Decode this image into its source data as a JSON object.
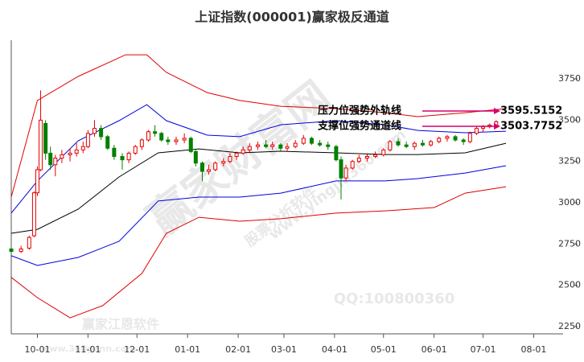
{
  "chart_data": {
    "type": "candlestick",
    "title": "上证指数(000001)赢家极反通道",
    "xlim": [
      -16,
      322
    ],
    "xticks": [
      {
        "value": 0,
        "label": "10-01"
      },
      {
        "value": 31,
        "label": "11-01"
      },
      {
        "value": 61,
        "label": "12-01"
      },
      {
        "value": 92,
        "label": "01-01"
      },
      {
        "value": 123,
        "label": "02-01"
      },
      {
        "value": 151,
        "label": "03-01"
      },
      {
        "value": 182,
        "label": "04-01"
      },
      {
        "value": 212,
        "label": "05-01"
      },
      {
        "value": 243,
        "label": "06-01"
      },
      {
        "value": 273,
        "label": "07-01"
      },
      {
        "value": 304,
        "label": "08-01"
      }
    ],
    "ylim": [
      2206,
      3984
    ],
    "yticks": [
      2250,
      2500,
      2750,
      3000,
      3250,
      3500,
      3750
    ],
    "up_color": "#e60000",
    "down_color": "#008000",
    "candles": {
      "x": [
        -16,
        -10,
        -5,
        -2,
        0,
        2,
        5,
        8,
        11,
        15,
        20,
        24,
        28,
        31,
        35,
        39,
        43,
        47,
        52,
        56,
        60,
        64,
        68,
        72,
        76,
        80,
        85,
        90,
        94,
        97,
        101,
        105,
        109,
        114,
        118,
        122,
        126,
        130,
        135,
        140,
        144,
        149,
        153,
        158,
        163,
        168,
        173,
        178,
        183,
        186,
        189,
        193,
        197,
        202,
        207,
        212,
        216,
        221,
        226,
        231,
        236,
        241,
        246,
        251,
        256,
        261,
        265,
        269,
        273,
        277,
        281
      ],
      "open": [
        2720,
        2705,
        2725,
        2800,
        3060,
        3200,
        3480,
        3300,
        3230,
        3270,
        3290,
        3300,
        3320,
        3340,
        3420,
        3450,
        3400,
        3330,
        3280,
        3260,
        3300,
        3340,
        3380,
        3430,
        3420,
        3380,
        3370,
        3380,
        3390,
        3310,
        3240,
        3190,
        3200,
        3240,
        3250,
        3280,
        3300,
        3320,
        3340,
        3350,
        3340,
        3350,
        3330,
        3340,
        3360,
        3390,
        3360,
        3350,
        3340,
        3260,
        3150,
        3210,
        3250,
        3270,
        3280,
        3290,
        3320,
        3370,
        3350,
        3340,
        3360,
        3350,
        3370,
        3390,
        3400,
        3380,
        3370,
        3420,
        3450,
        3460,
        3470
      ],
      "high": [
        2735,
        2740,
        2800,
        3070,
        3220,
        3680,
        3500,
        3340,
        3290,
        3320,
        3330,
        3360,
        3370,
        3440,
        3500,
        3470,
        3410,
        3350,
        3300,
        3310,
        3350,
        3390,
        3440,
        3470,
        3430,
        3400,
        3400,
        3420,
        3400,
        3320,
        3250,
        3230,
        3250,
        3270,
        3300,
        3310,
        3340,
        3360,
        3370,
        3380,
        3370,
        3360,
        3360,
        3380,
        3410,
        3400,
        3380,
        3370,
        3350,
        3280,
        3230,
        3260,
        3290,
        3300,
        3310,
        3330,
        3380,
        3390,
        3370,
        3370,
        3380,
        3380,
        3400,
        3410,
        3410,
        3390,
        3430,
        3460,
        3470,
        3480,
        3500
      ],
      "low": [
        2690,
        2695,
        2715,
        2790,
        3040,
        3190,
        3260,
        3200,
        3160,
        3240,
        3250,
        3280,
        3300,
        3330,
        3400,
        3380,
        3320,
        3260,
        3200,
        3240,
        3290,
        3320,
        3370,
        3400,
        3370,
        3350,
        3350,
        3360,
        3300,
        3220,
        3130,
        3170,
        3190,
        3220,
        3240,
        3260,
        3290,
        3300,
        3320,
        3330,
        3320,
        3310,
        3310,
        3330,
        3350,
        3350,
        3340,
        3320,
        3250,
        3020,
        3130,
        3200,
        3240,
        3250,
        3270,
        3280,
        3310,
        3340,
        3330,
        3320,
        3340,
        3340,
        3360,
        3370,
        3370,
        3350,
        3360,
        3410,
        3430,
        3450,
        3460
      ],
      "close": [
        2705,
        2720,
        2790,
        3060,
        3200,
        3500,
        3300,
        3230,
        3270,
        3290,
        3300,
        3320,
        3340,
        3420,
        3450,
        3400,
        3330,
        3280,
        3260,
        3300,
        3340,
        3380,
        3430,
        3420,
        3380,
        3370,
        3380,
        3390,
        3310,
        3240,
        3190,
        3200,
        3240,
        3250,
        3280,
        3300,
        3320,
        3340,
        3350,
        3340,
        3350,
        3330,
        3340,
        3360,
        3390,
        3360,
        3350,
        3340,
        3260,
        3150,
        3210,
        3250,
        3270,
        3280,
        3290,
        3320,
        3370,
        3350,
        3340,
        3360,
        3350,
        3370,
        3390,
        3400,
        3380,
        3370,
        3420,
        3450,
        3460,
        3470,
        3490
      ]
    },
    "series": [
      {
        "color": "#e00000",
        "x": [
          -16,
          0,
          25,
          54,
          67,
          79,
          104,
          124,
          149,
          183,
          213,
          233,
          262,
          287
        ],
        "values": [
          3034,
          3619,
          3765,
          3896,
          3896,
          3789,
          3667,
          3619,
          3584,
          3570,
          3545,
          3521,
          3545,
          3570
        ]
      },
      {
        "color": "#0000e0",
        "x": [
          -16,
          0,
          25,
          50,
          67,
          79,
          104,
          124,
          149,
          183,
          213,
          233,
          262,
          287
        ],
        "values": [
          2937,
          3132,
          3375,
          3497,
          3594,
          3497,
          3409,
          3400,
          3472,
          3497,
          3472,
          3438,
          3424,
          3433
        ]
      },
      {
        "color": "#000000",
        "x": [
          -16,
          0,
          25,
          50,
          74,
          99,
          124,
          149,
          183,
          213,
          233,
          262,
          287
        ],
        "values": [
          2815,
          2839,
          2961,
          3156,
          3302,
          3326,
          3302,
          3312,
          3302,
          3292,
          3292,
          3302,
          3360
        ]
      },
      {
        "color": "#0000e0",
        "x": [
          -16,
          0,
          25,
          50,
          74,
          99,
          124,
          149,
          183,
          213,
          233,
          262,
          287
        ],
        "values": [
          2679,
          2620,
          2669,
          2766,
          3010,
          3034,
          3034,
          3058,
          3132,
          3132,
          3146,
          3180,
          3224
        ]
      },
      {
        "color": "#e00000",
        "x": [
          -16,
          0,
          20,
          40,
          64,
          79,
          99,
          124,
          149,
          183,
          213,
          243,
          262,
          287
        ],
        "values": [
          2548,
          2425,
          2303,
          2377,
          2572,
          2815,
          2912,
          2888,
          2903,
          2937,
          2951,
          2971,
          3058,
          3097
        ]
      }
    ],
    "annotations": [
      {
        "text": "压力位强势外轨线",
        "value": 3595.5152
      },
      {
        "text": "支撑位强势通道线",
        "value": 3503.7752
      }
    ],
    "watermarks": [
      "赢家财富网",
      "赢家江恩软件",
      "股票分析软件",
      "www.yingjia360.com",
      "QQ:100800360",
      "www.360gann.com"
    ]
  }
}
